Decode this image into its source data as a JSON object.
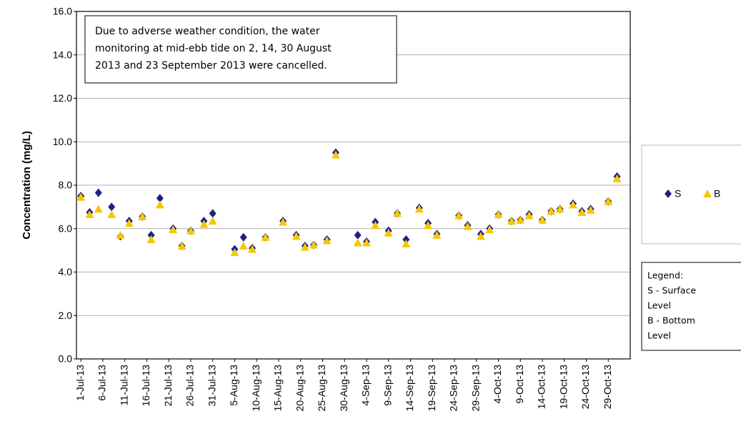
{
  "chart_data": {
    "type": "scatter",
    "y_label": "Concentration (mg/L)",
    "annotation": [
      "Due  to adverse weather condition, the  water",
      "monitoring at mid-ebb tide on 2, 14, 30 August",
      "2013 and 23 September 2013 were cancelled."
    ],
    "legend_note": [
      "Legend:",
      "S - Surface",
      "Level",
      "B - Bottom",
      "Level"
    ],
    "x": [
      "2013-07-01",
      "2013-07-03",
      "2013-07-05",
      "2013-07-08",
      "2013-07-10",
      "2013-07-12",
      "2013-07-15",
      "2013-07-17",
      "2013-07-19",
      "2013-07-22",
      "2013-07-24",
      "2013-07-26",
      "2013-07-29",
      "2013-07-31",
      "2013-08-05",
      "2013-08-07",
      "2013-08-09",
      "2013-08-12",
      "2013-08-16",
      "2013-08-19",
      "2013-08-21",
      "2013-08-23",
      "2013-08-26",
      "2013-08-28",
      "2013-09-02",
      "2013-09-04",
      "2013-09-06",
      "2013-09-09",
      "2013-09-11",
      "2013-09-13",
      "2013-09-16",
      "2013-09-18",
      "2013-09-20",
      "2013-09-25",
      "2013-09-27",
      "2013-09-30",
      "2013-10-02",
      "2013-10-04",
      "2013-10-07",
      "2013-10-09",
      "2013-10-11",
      "2013-10-14",
      "2013-10-16",
      "2013-10-18",
      "2013-10-21",
      "2013-10-23",
      "2013-10-25",
      "2013-10-29",
      "2013-10-31"
    ],
    "series": [
      {
        "name": "S",
        "color": "#1f1f8a",
        "marker": "diamond",
        "values": [
          7.5,
          6.75,
          7.65,
          7.0,
          5.65,
          6.35,
          6.55,
          5.7,
          7.4,
          6.0,
          5.2,
          5.9,
          6.35,
          6.7,
          5.05,
          5.6,
          5.1,
          5.6,
          6.35,
          5.7,
          5.2,
          5.25,
          5.5,
          9.5,
          5.7,
          5.4,
          6.3,
          5.9,
          6.7,
          5.5,
          6.95,
          6.25,
          5.75,
          6.6,
          6.15,
          5.75,
          6.0,
          6.65,
          6.35,
          6.4,
          6.65,
          6.4,
          6.8,
          6.9,
          7.15,
          6.8,
          6.9,
          7.25,
          8.4
        ]
      },
      {
        "name": "B",
        "color": "#f5c800",
        "marker": "triangle",
        "values": [
          7.45,
          6.65,
          6.9,
          6.65,
          5.7,
          6.25,
          6.55,
          5.5,
          7.1,
          5.95,
          5.2,
          5.9,
          6.2,
          6.35,
          4.9,
          5.2,
          5.05,
          5.6,
          6.3,
          5.65,
          5.15,
          5.25,
          5.45,
          9.4,
          5.35,
          5.35,
          6.15,
          5.8,
          6.7,
          5.3,
          6.9,
          6.15,
          5.7,
          6.6,
          6.1,
          5.65,
          5.95,
          6.65,
          6.35,
          6.4,
          6.6,
          6.4,
          6.8,
          6.9,
          7.1,
          6.75,
          6.85,
          7.25,
          8.3
        ]
      }
    ],
    "xlim": [
      "2013-06-30",
      "2013-11-03"
    ],
    "xticks": [
      {
        "value": "2013-07-01",
        "label": "1-Jul-13"
      },
      {
        "value": "2013-07-06",
        "label": "6-Jul-13"
      },
      {
        "value": "2013-07-11",
        "label": "11-Jul-13"
      },
      {
        "value": "2013-07-16",
        "label": "16-Jul-13"
      },
      {
        "value": "2013-07-21",
        "label": "21-Jul-13"
      },
      {
        "value": "2013-07-26",
        "label": "26-Jul-13"
      },
      {
        "value": "2013-07-31",
        "label": "31-Jul-13"
      },
      {
        "value": "2013-08-05",
        "label": "5-Aug-13"
      },
      {
        "value": "2013-08-10",
        "label": "10-Aug-13"
      },
      {
        "value": "2013-08-15",
        "label": "15-Aug-13"
      },
      {
        "value": "2013-08-20",
        "label": "20-Aug-13"
      },
      {
        "value": "2013-08-25",
        "label": "25-Aug-13"
      },
      {
        "value": "2013-08-30",
        "label": "30-Aug-13"
      },
      {
        "value": "2013-09-04",
        "label": "4-Sep-13"
      },
      {
        "value": "2013-09-09",
        "label": "9-Sep-13"
      },
      {
        "value": "2013-09-14",
        "label": "14-Sep-13"
      },
      {
        "value": "2013-09-19",
        "label": "19-Sep-13"
      },
      {
        "value": "2013-09-24",
        "label": "24-Sep-13"
      },
      {
        "value": "2013-09-29",
        "label": "29-Sep-13"
      },
      {
        "value": "2013-10-04",
        "label": "4-Oct-13"
      },
      {
        "value": "2013-10-09",
        "label": "9-Oct-13"
      },
      {
        "value": "2013-10-14",
        "label": "14-Oct-13"
      },
      {
        "value": "2013-10-19",
        "label": "19-Oct-13"
      },
      {
        "value": "2013-10-24",
        "label": "24-Oct-13"
      },
      {
        "value": "2013-10-29",
        "label": "29-Oct-13"
      }
    ],
    "ylim": [
      0,
      16
    ],
    "yticks": [
      {
        "value": 0,
        "label": "0.0"
      },
      {
        "value": 2,
        "label": "2.0"
      },
      {
        "value": 4,
        "label": "4.0"
      },
      {
        "value": 6,
        "label": "6.0"
      },
      {
        "value": 8,
        "label": "8.0"
      },
      {
        "value": 10,
        "label": "10.0"
      },
      {
        "value": 12,
        "label": "12.0"
      },
      {
        "value": 14,
        "label": "14.0"
      },
      {
        "value": 16,
        "label": "16.0"
      }
    ],
    "grid": true
  }
}
